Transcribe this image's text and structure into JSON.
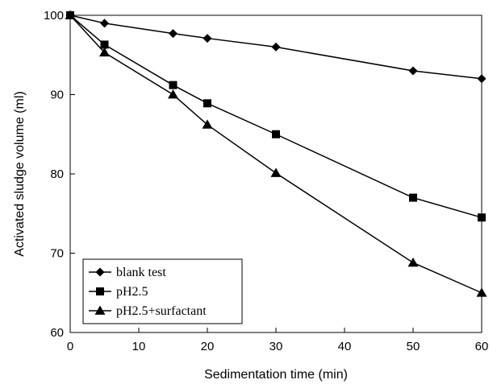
{
  "chart_data": {
    "type": "line",
    "title": "",
    "xlabel": "Sedimentation time (min)",
    "ylabel": "Activated sludge volume (ml)",
    "xlim": [
      0,
      60
    ],
    "ylim": [
      60,
      100
    ],
    "xticks": [
      0,
      10,
      20,
      30,
      40,
      50,
      60
    ],
    "yticks": [
      60,
      70,
      80,
      90,
      100
    ],
    "grid": false,
    "legend_position": "bottom-left",
    "line_color": "#000000",
    "series": [
      {
        "name": "blank test",
        "marker": "diamond",
        "x": [
          0,
          5,
          15,
          20,
          30,
          50,
          60
        ],
        "y": [
          100,
          99.0,
          97.7,
          97.1,
          96.0,
          93.0,
          92.0
        ]
      },
      {
        "name": "pH2.5",
        "marker": "square",
        "x": [
          0,
          5,
          15,
          20,
          30,
          50,
          60
        ],
        "y": [
          100,
          96.3,
          91.2,
          88.9,
          85.0,
          77.0,
          74.5
        ]
      },
      {
        "name": "pH2.5+surfactant",
        "marker": "triangle",
        "x": [
          0,
          5,
          15,
          20,
          30,
          50,
          60
        ],
        "y": [
          100,
          95.3,
          90.0,
          86.2,
          80.1,
          68.8,
          65.0
        ]
      }
    ]
  }
}
